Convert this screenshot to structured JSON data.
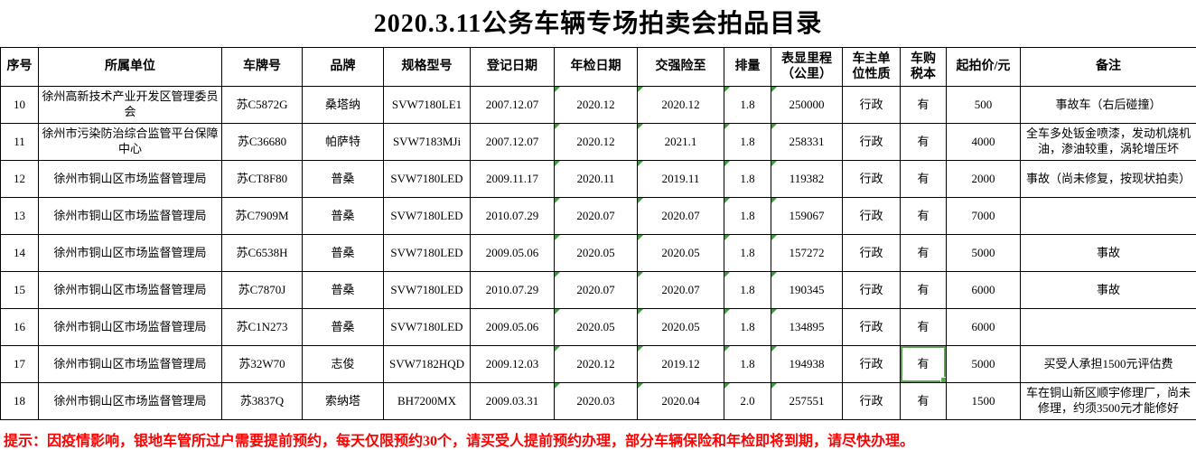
{
  "title": "2020.3.11公务车辆专场拍卖会拍品目录",
  "table": {
    "columns": [
      {
        "key": "seq",
        "label": "序号"
      },
      {
        "key": "unit",
        "label": "所属单位"
      },
      {
        "key": "plate",
        "label": "车牌号"
      },
      {
        "key": "brand",
        "label": "品牌"
      },
      {
        "key": "model",
        "label": "规格型号"
      },
      {
        "key": "reg_date",
        "label": "登记日期"
      },
      {
        "key": "inspection_date",
        "label": "年检日期"
      },
      {
        "key": "insurance_until",
        "label": "交强险至"
      },
      {
        "key": "displacement",
        "label": "排量"
      },
      {
        "key": "mileage",
        "label": "表显里程\n（公里）"
      },
      {
        "key": "owner_type",
        "label": "车主单\n位性质"
      },
      {
        "key": "tax_book",
        "label": "车购\n税本"
      },
      {
        "key": "start_price",
        "label": "起拍价/元"
      },
      {
        "key": "remarks",
        "label": "备注"
      }
    ],
    "rows": [
      [
        "10",
        "徐州高新技术产业开发区管理委员会",
        "苏C5872G",
        "桑塔纳",
        "SVW7180LE1",
        "2007.12.07",
        "2020.12",
        "2020.12",
        "1.8",
        "250000",
        "行政",
        "有",
        "500",
        "事故车（右后碰撞）"
      ],
      [
        "11",
        "徐州市污染防治综合监管平台保障中心",
        "苏C36680",
        "帕萨特",
        "SVW7183MJi",
        "2007.12.07",
        "2020.12",
        "2021.1",
        "1.8",
        "258331",
        "行政",
        "有",
        "4000",
        "全车多处钣金喷漆，发动机烧机油，渗油较重，涡轮增压坏"
      ],
      [
        "12",
        "徐州市铜山区市场监督管理局",
        "苏CT8F80",
        "普桑",
        "SVW7180LED",
        "2009.11.17",
        "2020.11",
        "2019.11",
        "1.8",
        "119382",
        "行政",
        "有",
        "2000",
        "事故（尚未修复，按现状拍卖）"
      ],
      [
        "13",
        "徐州市铜山区市场监督管理局",
        "苏C7909M",
        "普桑",
        "SVW7180LED",
        "2010.07.29",
        "2020.07",
        "2020.07",
        "1.8",
        "159067",
        "行政",
        "有",
        "7000",
        ""
      ],
      [
        "14",
        "徐州市铜山区市场监督管理局",
        "苏C6538H",
        "普桑",
        "SVW7180LED",
        "2009.05.06",
        "2020.05",
        "2020.05",
        "1.8",
        "157272",
        "行政",
        "有",
        "5000",
        "事故"
      ],
      [
        "15",
        "徐州市铜山区市场监督管理局",
        "苏C7870J",
        "普桑",
        "SVW7180LED",
        "2010.07.29",
        "2020.07",
        "2020.07",
        "1.8",
        "190345",
        "行政",
        "有",
        "6000",
        "事故"
      ],
      [
        "16",
        "徐州市铜山区市场监督管理局",
        "苏C1N273",
        "普桑",
        "SVW7180LED",
        "2009.05.06",
        "2020.05",
        "2020.05",
        "1.8",
        "134895",
        "行政",
        "有",
        "6000",
        ""
      ],
      [
        "17",
        "徐州市铜山区市场监督管理局",
        "苏32W70",
        "志俊",
        "SVW7182HQD",
        "2009.12.03",
        "2020.12",
        "2019.12",
        "1.8",
        "194938",
        "行政",
        "有",
        "5000",
        "买受人承担1500元评估费"
      ],
      [
        "18",
        "徐州市铜山区市场监督管理局",
        "苏3837Q",
        "索纳塔",
        "BH7200MX",
        "2009.03.31",
        "2020.03",
        "2020.04",
        "2.0",
        "257551",
        "行政",
        "有",
        "1500",
        "车在铜山新区顺宇修理厂，尚未修理，约须3500元才能修好"
      ]
    ]
  },
  "active_cell": {
    "row_seq": "17",
    "column_key": "tax_book"
  },
  "error_indicator_column_keys": [
    "inspection_date",
    "insurance_until",
    "displacement",
    "mileage"
  ],
  "footer_note": "提示：因疫情影响，银地车管所过户需要提前预约，每天仅限预约30个，请买受人提前预约办理，部分车辆保险和年检即将到期，请尽快办理。",
  "colors": {
    "title_text": "#000000",
    "note_red": "#FF0000",
    "selection_green": "#5BA352",
    "error_triangle_green": "#3F9B3F",
    "grid_border": "#000000"
  }
}
